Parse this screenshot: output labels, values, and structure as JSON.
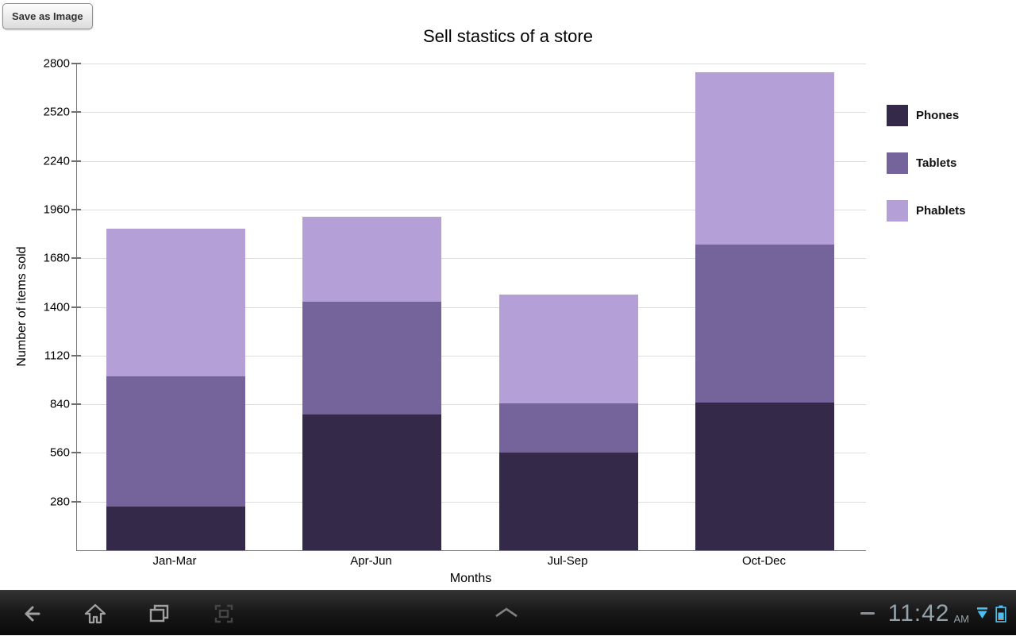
{
  "app": {
    "save_button_label": "Save as Image"
  },
  "chart_data": {
    "type": "bar",
    "stacked": true,
    "title": "Sell stastics of a store",
    "xlabel": "Months",
    "ylabel": "Number of items sold",
    "categories": [
      "Jan-Mar",
      "Apr-Jun",
      "Jul-Sep",
      "Oct-Dec"
    ],
    "series": [
      {
        "name": "Phones",
        "color": "#35294A",
        "values": [
          250,
          780,
          560,
          850
        ]
      },
      {
        "name": "Tablets",
        "color": "#75649B",
        "values": [
          750,
          650,
          285,
          910
        ]
      },
      {
        "name": "Phablets",
        "color": "#B4A0D6",
        "values": [
          850,
          490,
          625,
          990
        ]
      }
    ],
    "ylim": [
      0,
      2800
    ],
    "yticks": [
      280,
      560,
      840,
      1120,
      1400,
      1680,
      1960,
      2240,
      2520,
      2800
    ],
    "legend_position": "right",
    "grid": true
  },
  "navbar": {
    "time": "11:42",
    "meridiem": "AM",
    "accent_color": "#49C0F0",
    "icons": [
      "back",
      "home",
      "recents",
      "screenshot",
      "chevron-up",
      "minus",
      "signal",
      "battery"
    ]
  }
}
